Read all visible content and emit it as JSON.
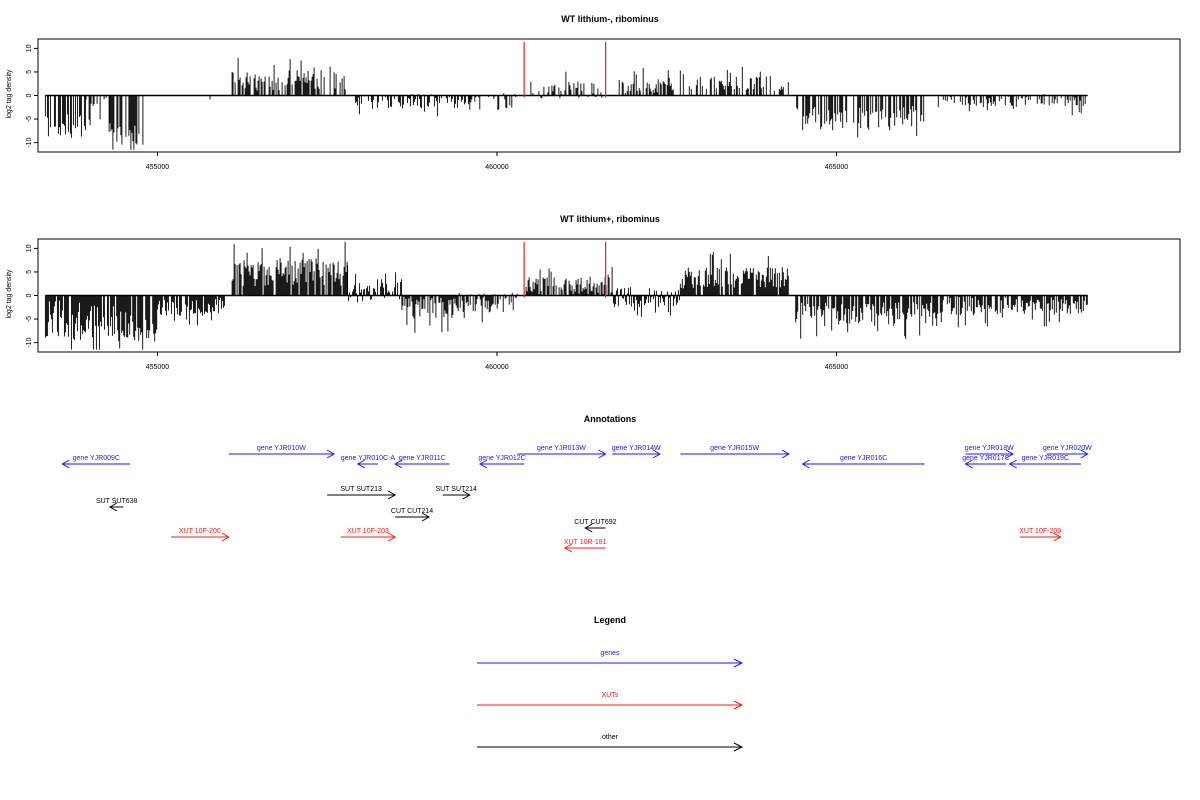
{
  "chart_data": [
    {
      "type": "bar",
      "title": "WT lithium-, ribominus",
      "ylabel": "log2 tag density",
      "xlabel": "",
      "xlim": [
        453300,
        470000
      ],
      "ylim": [
        -12,
        12
      ],
      "xticks": [
        455000,
        460000,
        465000
      ],
      "xtick_labels": [
        "455000",
        "460000",
        "465000"
      ],
      "yticks": [
        10,
        5,
        0,
        -5,
        -10
      ],
      "ytick_labels": [
        "10",
        "5",
        "0",
        "-5",
        "-10"
      ],
      "marker_lines": {
        "positions": [
          460400,
          461600
        ],
        "color": "#e0281e"
      },
      "segments": [
        {
          "start": 453350,
          "end": 453950,
          "mean": -6.5,
          "amp": 2.5
        },
        {
          "start": 453950,
          "end": 454300,
          "mean": -3.5,
          "amp": 3.5
        },
        {
          "start": 454300,
          "end": 454800,
          "mean": -7.5,
          "amp": 3.0
        },
        {
          "start": 455700,
          "end": 455780,
          "mean": -1.0,
          "amp": 0.5
        },
        {
          "start": 456100,
          "end": 457800,
          "mean": 3.2,
          "amp": 2.2
        },
        {
          "start": 457900,
          "end": 459600,
          "mean": -1.2,
          "amp": 1.6
        },
        {
          "start": 459600,
          "end": 460300,
          "mean": -1.3,
          "amp": 1.8
        },
        {
          "start": 460500,
          "end": 461600,
          "mean": 1.2,
          "amp": 1.8
        },
        {
          "start": 461800,
          "end": 462600,
          "mean": 2.2,
          "amp": 1.7
        },
        {
          "start": 462700,
          "end": 464300,
          "mean": 2.6,
          "amp": 1.6
        },
        {
          "start": 464400,
          "end": 466300,
          "mean": -4.8,
          "amp": 2.6
        },
        {
          "start": 466500,
          "end": 468000,
          "mean": -1.2,
          "amp": 1.3
        },
        {
          "start": 468000,
          "end": 468700,
          "mean": -0.9,
          "amp": 1.5
        }
      ],
      "fill_density": 0.55,
      "seed": 7
    },
    {
      "type": "bar",
      "title": "WT lithium+, ribominus",
      "ylabel": "log2 tag density",
      "xlabel": "",
      "xlim": [
        453300,
        470000
      ],
      "ylim": [
        -12,
        12
      ],
      "xticks": [
        455000,
        460000,
        465000
      ],
      "xtick_labels": [
        "455000",
        "460000",
        "465000"
      ],
      "yticks": [
        10,
        5,
        0,
        -5,
        -10
      ],
      "ytick_labels": [
        "10",
        "5",
        "0",
        "-5",
        "-10"
      ],
      "marker_lines": {
        "positions": [
          460400,
          461600
        ],
        "color": "#e0281e"
      },
      "segments": [
        {
          "start": 453350,
          "end": 453600,
          "mean": -5.0,
          "amp": 4.0
        },
        {
          "start": 453600,
          "end": 454400,
          "mean": -5.5,
          "amp": 4.0
        },
        {
          "start": 454400,
          "end": 455000,
          "mean": -6.5,
          "amp": 3.5
        },
        {
          "start": 455000,
          "end": 456000,
          "mean": -2.2,
          "amp": 2.2
        },
        {
          "start": 456100,
          "end": 457800,
          "mean": 5.0,
          "amp": 3.0
        },
        {
          "start": 457800,
          "end": 458600,
          "mean": 1.0,
          "amp": 2.5
        },
        {
          "start": 458600,
          "end": 459400,
          "mean": -2.5,
          "amp": 2.5
        },
        {
          "start": 459400,
          "end": 460300,
          "mean": -1.5,
          "amp": 2.2
        },
        {
          "start": 460400,
          "end": 461700,
          "mean": 2.0,
          "amp": 2.0
        },
        {
          "start": 461700,
          "end": 462700,
          "mean": -0.3,
          "amp": 2.2
        },
        {
          "start": 462700,
          "end": 464300,
          "mean": 3.8,
          "amp": 2.5
        },
        {
          "start": 464400,
          "end": 466500,
          "mean": -4.0,
          "amp": 2.6
        },
        {
          "start": 466500,
          "end": 468700,
          "mean": -2.0,
          "amp": 2.2
        }
      ],
      "fill_density": 0.85,
      "seed": 19
    }
  ],
  "annotations": {
    "title": "Annotations",
    "features": [
      {
        "label": "gene YJR009C",
        "start": 454600,
        "end": 453600,
        "strand": "-",
        "kind": "gene",
        "row": 1
      },
      {
        "label": "gene YJR010W",
        "start": 456050,
        "end": 457600,
        "strand": "+",
        "kind": "gene",
        "row": 0
      },
      {
        "label": "gene YJR010C-A",
        "start": 458250,
        "end": 457950,
        "strand": "-",
        "kind": "gene",
        "row": 1
      },
      {
        "label": "gene YJR011C",
        "start": 459300,
        "end": 458500,
        "strand": "-",
        "kind": "gene",
        "row": 1
      },
      {
        "label": "gene YJR012C",
        "start": 460400,
        "end": 459750,
        "strand": "-",
        "kind": "gene",
        "row": 1
      },
      {
        "label": "gene YJR013W",
        "start": 460300,
        "end": 461600,
        "strand": "+",
        "kind": "gene",
        "row": 0
      },
      {
        "label": "gene YJR014W",
        "start": 461700,
        "end": 462400,
        "strand": "+",
        "kind": "gene",
        "row": 0
      },
      {
        "label": "gene YJR015W",
        "start": 462700,
        "end": 464300,
        "strand": "+",
        "kind": "gene",
        "row": 0
      },
      {
        "label": "gene YJR016C",
        "start": 466300,
        "end": 464500,
        "strand": "-",
        "kind": "gene",
        "row": 1
      },
      {
        "label": "gene YJR017C",
        "start": 467500,
        "end": 466900,
        "strand": "-",
        "kind": "gene",
        "row": 1
      },
      {
        "label": "gene YJR018W",
        "start": 466900,
        "end": 467600,
        "strand": "+",
        "kind": "gene",
        "row": 0
      },
      {
        "label": "gene YJR019C",
        "start": 468600,
        "end": 467550,
        "strand": "-",
        "kind": "gene",
        "row": 1
      },
      {
        "label": "gene YJR020W",
        "start": 468100,
        "end": 468700,
        "strand": "+",
        "kind": "gene",
        "row": 0
      },
      {
        "label": "SUT SUT638",
        "start": 454500,
        "end": 454300,
        "strand": "-",
        "kind": "other",
        "row": 3
      },
      {
        "label": "SUT SUT213",
        "start": 457500,
        "end": 458500,
        "strand": "+",
        "kind": "other",
        "row": 2
      },
      {
        "label": "SUT SUT214",
        "start": 459200,
        "end": 459600,
        "strand": "+",
        "kind": "other",
        "row": 2
      },
      {
        "label": "CUT CUT214",
        "start": 458500,
        "end": 459000,
        "strand": "+",
        "kind": "other",
        "row": 4
      },
      {
        "label": "CUT CUT692",
        "start": 461600,
        "end": 461300,
        "strand": "-",
        "kind": "other",
        "row": 5
      },
      {
        "label": "XUT 10F-200",
        "start": 455200,
        "end": 456050,
        "strand": "+",
        "kind": "xut",
        "row": 6
      },
      {
        "label": "XUT 10F-203",
        "start": 457700,
        "end": 458500,
        "strand": "+",
        "kind": "xut",
        "row": 6
      },
      {
        "label": "XUT 10R-181",
        "start": 461600,
        "end": 461000,
        "strand": "-",
        "kind": "xut",
        "row": 7
      },
      {
        "label": "XUT 10F-209",
        "start": 467700,
        "end": 468300,
        "strand": "+",
        "kind": "xut",
        "row": 6
      }
    ]
  },
  "legend": {
    "title": "Legend",
    "items": [
      {
        "label": "genes",
        "color": "#1a1aff"
      },
      {
        "label": "XUTs",
        "color": "#ff1a1a"
      },
      {
        "label": "other",
        "color": "#000000"
      }
    ]
  },
  "colors": {
    "gene": "#1a1aff",
    "xut": "#ff1a1a",
    "other": "#000000",
    "bar": "#000000",
    "axis": "#000000"
  }
}
